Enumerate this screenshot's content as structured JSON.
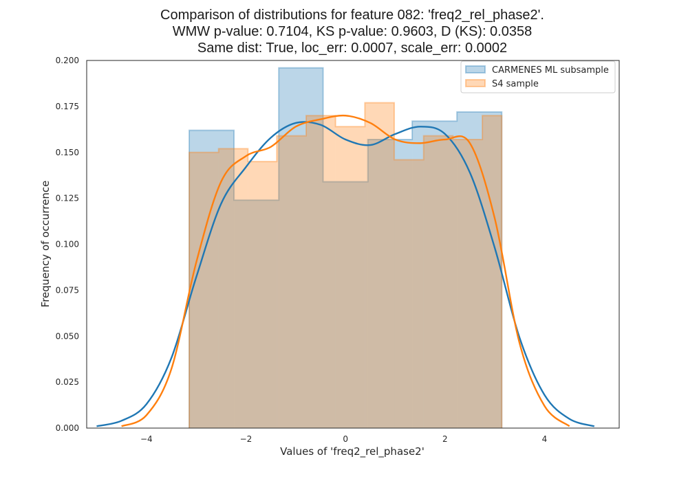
{
  "chart_data": {
    "type": "histogram",
    "title_lines": [
      "Comparison of distributions for feature 082: 'freq2_rel_phase2'.",
      "WMW p-value: 0.7104, KS p-value: 0.9603, D (KS): 0.0358",
      "Same dist: True, loc_err: 0.0007, scale_err: 0.0002"
    ],
    "xlabel": "Values of 'freq2_rel_phase2'",
    "ylabel": "Frequency of occurrence",
    "xlim": [
      -5.2,
      5.5
    ],
    "ylim": [
      0,
      0.2
    ],
    "xticks": [
      -4,
      -2,
      0,
      2,
      4
    ],
    "xtick_labels": [
      "−4",
      "−2",
      "0",
      "2",
      "4"
    ],
    "yticks": [
      0,
      0.025,
      0.05,
      0.075,
      0.1,
      0.125,
      0.15,
      0.175,
      0.2
    ],
    "ytick_labels": [
      "0.000",
      "0.025",
      "0.050",
      "0.075",
      "0.100",
      "0.125",
      "0.150",
      "0.175",
      "0.200"
    ],
    "legend_position": "top-right",
    "colors": {
      "series1": "#1f77b4",
      "series2": "#ff7f0e",
      "overlap": "#d0bca8"
    },
    "series": [
      {
        "name": "CARMENES ML subsample",
        "hist_edges": [
          -3.14,
          -2.24,
          -1.34,
          -0.45,
          0.45,
          1.34,
          2.24,
          3.14
        ],
        "hist_values": [
          0.162,
          0.124,
          0.196,
          0.134,
          0.157,
          0.167,
          0.172
        ],
        "kde_x": [
          -5.0,
          -4.5,
          -4.0,
          -3.5,
          -3.0,
          -2.5,
          -2.0,
          -1.5,
          -1.0,
          -0.5,
          0.0,
          0.5,
          1.0,
          1.5,
          2.0,
          2.5,
          3.0,
          3.5,
          4.0,
          4.5,
          5.0
        ],
        "kde_y": [
          0.001,
          0.004,
          0.013,
          0.038,
          0.082,
          0.122,
          0.142,
          0.158,
          0.166,
          0.165,
          0.157,
          0.154,
          0.16,
          0.164,
          0.16,
          0.139,
          0.098,
          0.049,
          0.018,
          0.005,
          0.001
        ]
      },
      {
        "name": "S4 sample",
        "hist_edges": [
          -3.14,
          -2.55,
          -1.96,
          -1.38,
          -0.79,
          -0.2,
          0.39,
          0.98,
          1.57,
          2.16,
          2.75,
          3.14
        ],
        "hist_values": [
          0.15,
          0.152,
          0.145,
          0.159,
          0.17,
          0.164,
          0.177,
          0.146,
          0.159,
          0.157,
          0.17
        ],
        "kde_x": [
          -4.5,
          -4.0,
          -3.5,
          -3.0,
          -2.5,
          -2.0,
          -1.5,
          -1.0,
          -0.5,
          0.0,
          0.5,
          1.0,
          1.5,
          2.0,
          2.5,
          3.0,
          3.5,
          4.0,
          4.5
        ],
        "kde_y": [
          0.001,
          0.007,
          0.032,
          0.09,
          0.134,
          0.148,
          0.153,
          0.164,
          0.168,
          0.17,
          0.166,
          0.157,
          0.155,
          0.157,
          0.155,
          0.114,
          0.046,
          0.012,
          0.001
        ]
      }
    ]
  }
}
